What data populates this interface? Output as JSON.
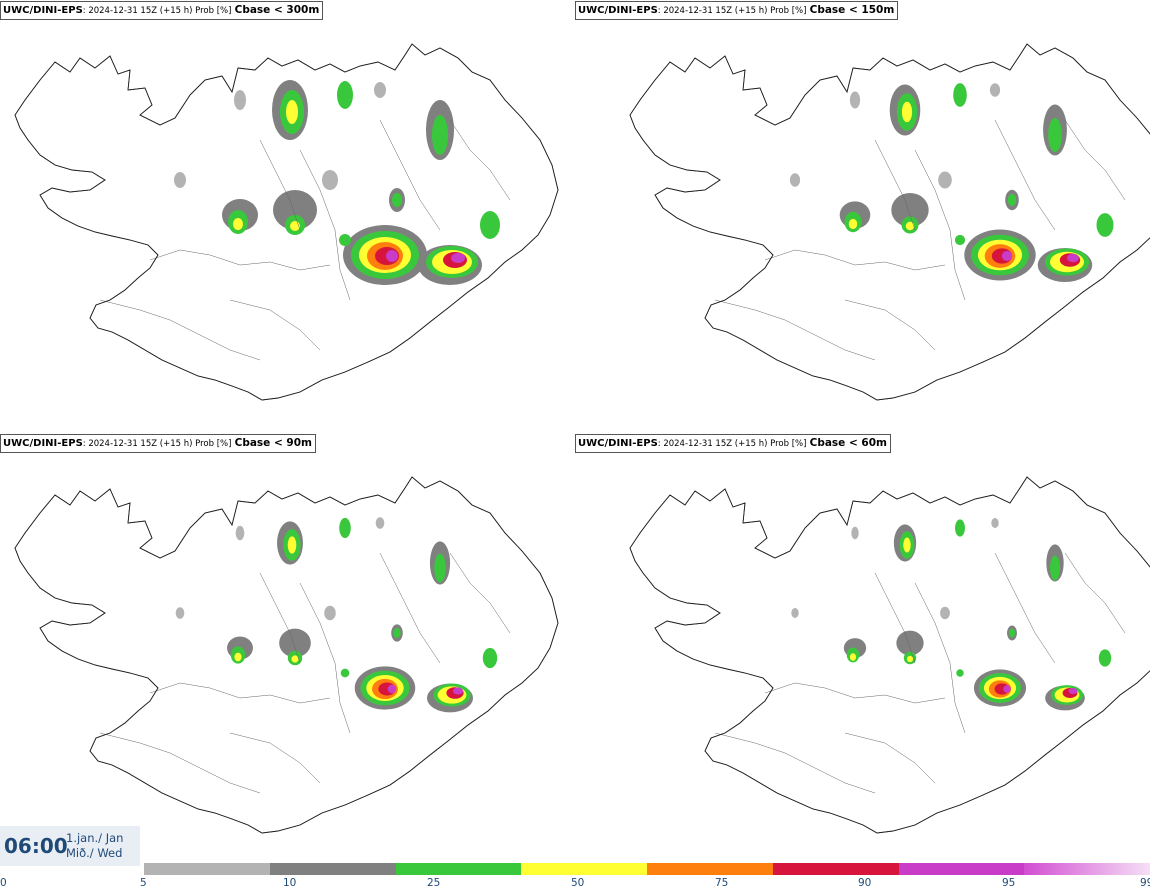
{
  "panels": [
    {
      "model": "UWC/DINI-EPS",
      "meta": ": 2024-12-31 15Z (+15 h) Prob [%]",
      "variable": "Cbase < 300m"
    },
    {
      "model": "UWC/DINI-EPS",
      "meta": ": 2024-12-31 15Z (+15 h) Prob [%]",
      "variable": "Cbase < 150m"
    },
    {
      "model": "UWC/DINI-EPS",
      "meta": ": 2024-12-31 15Z (+15 h) Prob [%]",
      "variable": "Cbase < 90m"
    },
    {
      "model": "UWC/DINI-EPS",
      "meta": ": 2024-12-31 15Z (+15 h) Prob [%]",
      "variable": "Cbase < 60m"
    }
  ],
  "valid_time": {
    "time": "06:00",
    "date_line1": "1.jan./ Jan",
    "date_line2": "Mið./ Wed"
  },
  "colorbar": {
    "ticks": [
      "0",
      "5",
      "10",
      "25",
      "50",
      "75",
      "90",
      "95",
      "99"
    ],
    "colors": [
      "#b3b3b3",
      "#808080",
      "#39c83c",
      "#ffff33",
      "#ff7f0e",
      "#d7143c",
      "#c83cc8",
      "#f0c8f0"
    ]
  }
}
